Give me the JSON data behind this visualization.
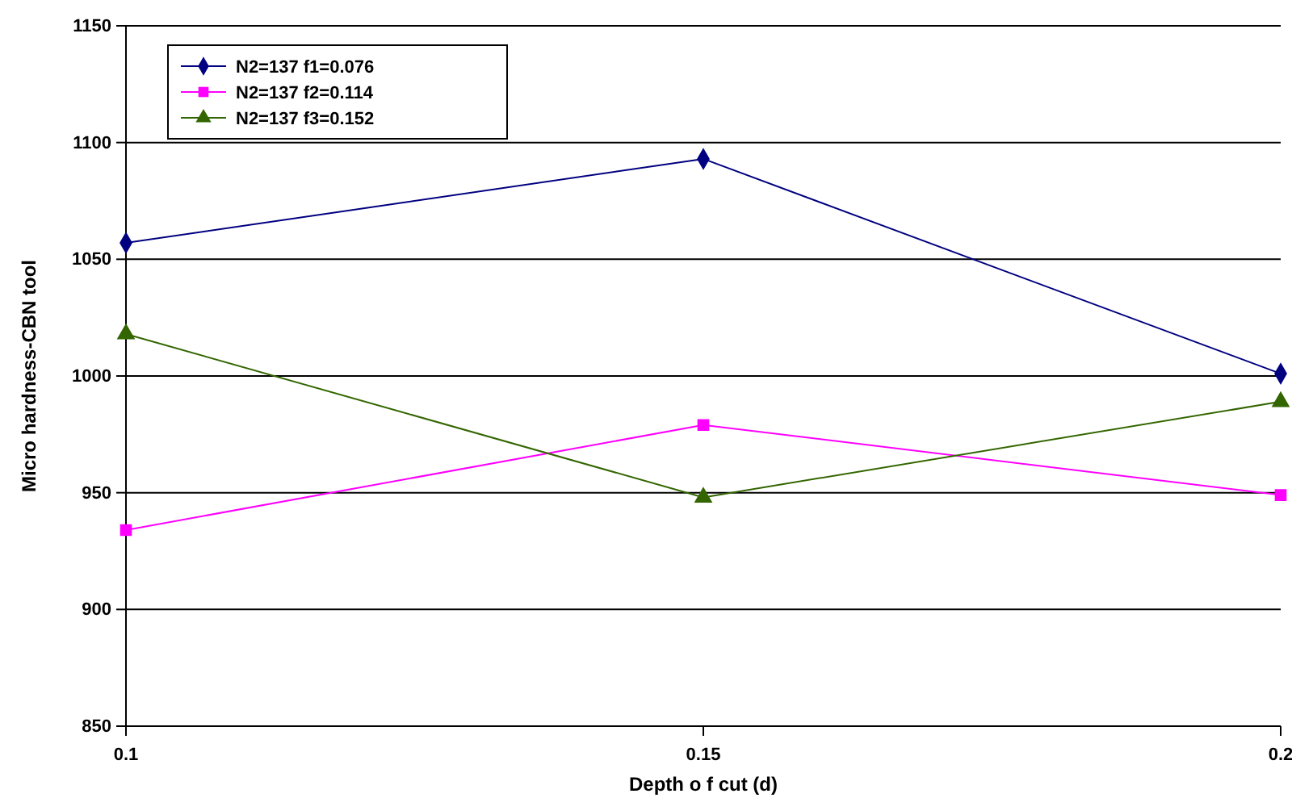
{
  "chart_data": {
    "type": "line",
    "xlabel": "Depth o f cut (d)",
    "ylabel": "Micro hardness-CBN tool",
    "x": [
      0.1,
      0.15,
      0.2
    ],
    "series": [
      {
        "name": "N2=137 f1=0.076",
        "color": "#000080",
        "marker": "diamond",
        "values": [
          1057,
          1093,
          1001
        ]
      },
      {
        "name": "N2=137 f2=0.114",
        "color": "#ff00ff",
        "marker": "square",
        "values": [
          934,
          979,
          949
        ]
      },
      {
        "name": "N2=137 f3=0.152",
        "color": "#336600",
        "marker": "triangle",
        "values": [
          1018,
          948,
          989
        ]
      }
    ],
    "xlim": [
      0.1,
      0.2
    ],
    "xticks": [
      0.1,
      0.15,
      0.2
    ],
    "ylim": [
      850,
      1150
    ],
    "yticks": [
      850,
      900,
      950,
      1000,
      1050,
      1100,
      1150
    ],
    "grid": "y",
    "legend": "top left"
  }
}
